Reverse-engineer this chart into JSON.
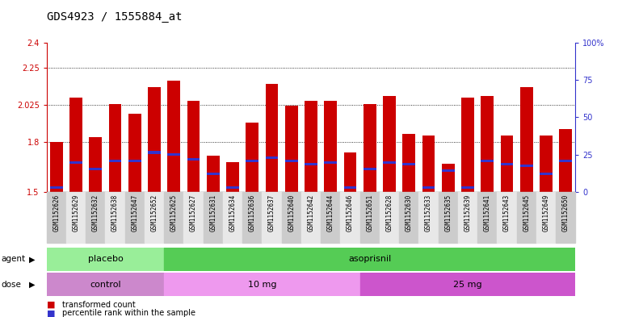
{
  "title": "GDS4923 / 1555884_at",
  "samples": [
    "GSM1152626",
    "GSM1152629",
    "GSM1152632",
    "GSM1152638",
    "GSM1152647",
    "GSM1152652",
    "GSM1152625",
    "GSM1152627",
    "GSM1152631",
    "GSM1152634",
    "GSM1152636",
    "GSM1152637",
    "GSM1152640",
    "GSM1152642",
    "GSM1152644",
    "GSM1152646",
    "GSM1152651",
    "GSM1152628",
    "GSM1152630",
    "GSM1152633",
    "GSM1152635",
    "GSM1152639",
    "GSM1152641",
    "GSM1152643",
    "GSM1152645",
    "GSM1152649",
    "GSM1152650"
  ],
  "bar_values": [
    1.8,
    2.07,
    1.83,
    2.03,
    1.97,
    2.13,
    2.17,
    2.05,
    1.72,
    1.68,
    1.92,
    2.15,
    2.02,
    2.05,
    2.05,
    1.74,
    2.03,
    2.08,
    1.85,
    1.84,
    1.67,
    2.07,
    2.08,
    1.84,
    2.13,
    1.84,
    1.88
  ],
  "percentile_values": [
    1.52,
    1.67,
    1.63,
    1.68,
    1.68,
    1.73,
    1.72,
    1.69,
    1.6,
    1.52,
    1.68,
    1.7,
    1.68,
    1.66,
    1.67,
    1.52,
    1.63,
    1.67,
    1.66,
    1.52,
    1.62,
    1.52,
    1.68,
    1.66,
    1.65,
    1.6,
    1.68
  ],
  "ymin": 1.5,
  "ymax": 2.4,
  "yticks": [
    1.5,
    1.8,
    2.025,
    2.25,
    2.4
  ],
  "ytick_labels": [
    "1.5",
    "1.8",
    "2.025",
    "2.25",
    "2.4"
  ],
  "right_yticks": [
    0,
    25,
    50,
    75,
    100
  ],
  "bar_color": "#CC0000",
  "percentile_color": "#3333CC",
  "agent_groups": [
    {
      "label": "placebo",
      "start": 0,
      "end": 6,
      "color": "#99EE99"
    },
    {
      "label": "asoprisnil",
      "start": 6,
      "end": 27,
      "color": "#55CC55"
    }
  ],
  "dose_groups": [
    {
      "label": "control",
      "start": 0,
      "end": 6,
      "color": "#CC88CC"
    },
    {
      "label": "10 mg",
      "start": 6,
      "end": 16,
      "color": "#EE99EE"
    },
    {
      "label": "25 mg",
      "start": 16,
      "end": 27,
      "color": "#CC55CC"
    }
  ],
  "legend_bar_label": "transformed count",
  "legend_pct_label": "percentile rank within the sample"
}
